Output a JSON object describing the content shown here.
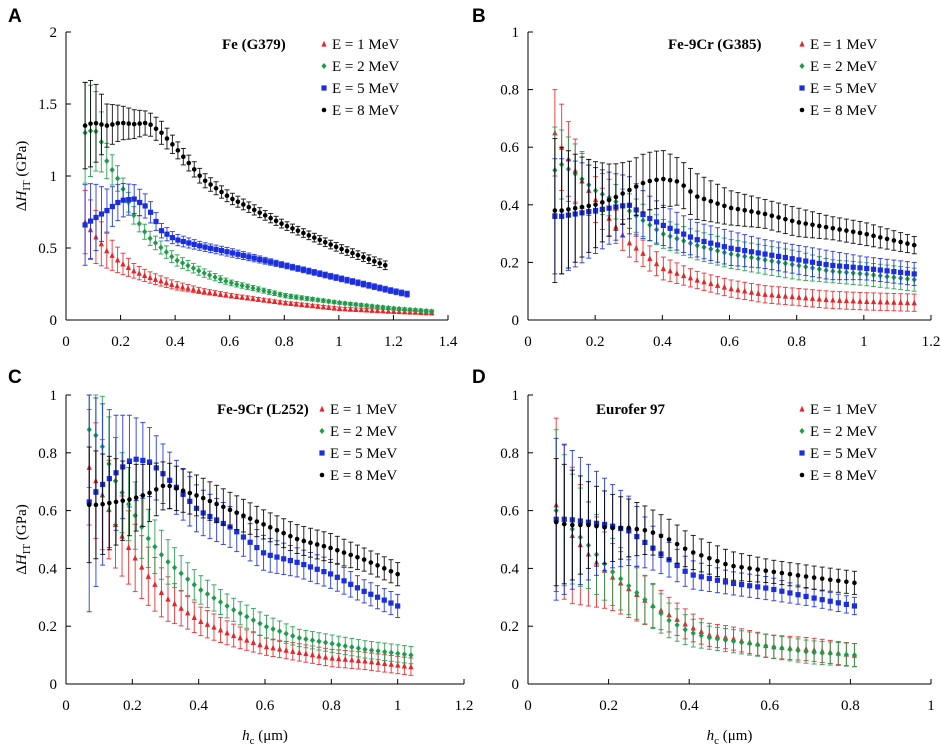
{
  "figure": {
    "xlabel_h": "h",
    "xlabel_sub": "c",
    "xlabel_unit": " (μm)",
    "ylabel_delta": "ΔH",
    "ylabel_sub": "IT",
    "ylabel_unit": " (GPa)"
  },
  "chart_data": [
    {
      "type": "scatter",
      "panel": "A",
      "title": "Fe (G379)",
      "xlim": [
        0,
        1.4
      ],
      "xticks": [
        0,
        0.2,
        0.4,
        0.6,
        0.8,
        1,
        1.2,
        1.4
      ],
      "ylim": [
        0,
        2
      ],
      "yticks": [
        0,
        0.5,
        1,
        1.5,
        2
      ],
      "xlabel": "",
      "ylabel": "ΔHIT (GPa)",
      "series": [
        {
          "name": "E = 1 MeV",
          "color": "#e8262a",
          "marker": "triangle",
          "x_end": 1.34,
          "x": [
            0.07,
            0.1,
            0.15,
            0.2,
            0.25,
            0.3,
            0.4,
            0.5,
            0.6,
            0.8,
            1.0,
            1.2,
            1.34
          ],
          "y": [
            0.68,
            0.6,
            0.48,
            0.4,
            0.34,
            0.3,
            0.24,
            0.2,
            0.17,
            0.12,
            0.08,
            0.06,
            0.05
          ],
          "err": [
            0.22,
            0.2,
            0.12,
            0.08,
            0.05,
            0.04,
            0.03,
            0.02,
            0.015,
            0.01,
            0.01,
            0.01,
            0.01
          ]
        },
        {
          "name": "E = 2 MeV",
          "color": "#1f9c4a",
          "marker": "diamond",
          "x_end": 1.34,
          "x": [
            0.07,
            0.1,
            0.12,
            0.15,
            0.2,
            0.25,
            0.3,
            0.4,
            0.5,
            0.6,
            0.8,
            1.0,
            1.2,
            1.34
          ],
          "y": [
            1.3,
            1.32,
            1.3,
            1.1,
            0.95,
            0.72,
            0.58,
            0.42,
            0.33,
            0.26,
            0.17,
            0.12,
            0.08,
            0.06
          ],
          "err": [
            0.35,
            0.3,
            0.25,
            0.12,
            0.08,
            0.06,
            0.05,
            0.04,
            0.03,
            0.02,
            0.015,
            0.01,
            0.01,
            0.01
          ]
        },
        {
          "name": "E = 5 MeV",
          "color": "#1a2ee0",
          "marker": "square",
          "x_end": 1.25,
          "x": [
            0.07,
            0.1,
            0.15,
            0.2,
            0.25,
            0.3,
            0.35,
            0.4,
            0.5,
            0.6,
            0.8,
            1.0,
            1.2,
            1.25
          ],
          "y": [
            0.66,
            0.7,
            0.76,
            0.83,
            0.84,
            0.78,
            0.62,
            0.56,
            0.51,
            0.47,
            0.38,
            0.29,
            0.2,
            0.18
          ],
          "err": [
            0.28,
            0.25,
            0.15,
            0.12,
            0.1,
            0.08,
            0.05,
            0.04,
            0.03,
            0.03,
            0.02,
            0.02,
            0.02,
            0.02
          ]
        },
        {
          "name": "E = 8 MeV",
          "color": "#000000",
          "marker": "circle",
          "x_end": 1.17,
          "x": [
            0.07,
            0.1,
            0.15,
            0.2,
            0.25,
            0.3,
            0.35,
            0.4,
            0.5,
            0.6,
            0.8,
            1.0,
            1.17
          ],
          "y": [
            1.35,
            1.37,
            1.35,
            1.37,
            1.36,
            1.37,
            1.3,
            1.2,
            0.98,
            0.85,
            0.66,
            0.5,
            0.38
          ],
          "err": [
            0.3,
            0.3,
            0.15,
            0.12,
            0.1,
            0.08,
            0.08,
            0.06,
            0.05,
            0.04,
            0.03,
            0.03,
            0.03
          ]
        }
      ]
    },
    {
      "type": "scatter",
      "panel": "B",
      "title": "Fe-9Cr (G385)",
      "xlim": [
        0,
        1.2
      ],
      "xticks": [
        0,
        0.2,
        0.4,
        0.6,
        0.8,
        1,
        1.2
      ],
      "ylim": [
        0,
        1
      ],
      "yticks": [
        0,
        0.2,
        0.4,
        0.6,
        0.8,
        1
      ],
      "xlabel": "",
      "ylabel": "",
      "series": [
        {
          "name": "E = 1 MeV",
          "color": "#e8262a",
          "marker": "triangle",
          "x_end": 1.15,
          "x": [
            0.08,
            0.1,
            0.15,
            0.2,
            0.25,
            0.3,
            0.4,
            0.5,
            0.6,
            0.7,
            0.8,
            0.9,
            1.0,
            1.15
          ],
          "y": [
            0.65,
            0.6,
            0.5,
            0.42,
            0.34,
            0.27,
            0.18,
            0.14,
            0.11,
            0.09,
            0.08,
            0.07,
            0.065,
            0.06
          ],
          "err": [
            0.15,
            0.15,
            0.1,
            0.08,
            0.06,
            0.05,
            0.04,
            0.03,
            0.03,
            0.03,
            0.03,
            0.03,
            0.03,
            0.03
          ]
        },
        {
          "name": "E = 2 MeV",
          "color": "#1f9c4a",
          "marker": "diamond",
          "x_end": 1.15,
          "x": [
            0.08,
            0.1,
            0.15,
            0.2,
            0.25,
            0.3,
            0.4,
            0.5,
            0.6,
            0.7,
            0.8,
            0.9,
            1.0,
            1.15
          ],
          "y": [
            0.52,
            0.54,
            0.5,
            0.45,
            0.42,
            0.38,
            0.3,
            0.26,
            0.23,
            0.21,
            0.19,
            0.17,
            0.16,
            0.14
          ],
          "err": [
            0.15,
            0.12,
            0.1,
            0.08,
            0.06,
            0.06,
            0.05,
            0.05,
            0.05,
            0.05,
            0.05,
            0.04,
            0.04,
            0.04
          ]
        },
        {
          "name": "E = 5 MeV",
          "color": "#1a2ee0",
          "marker": "square",
          "x_end": 1.15,
          "x": [
            0.08,
            0.1,
            0.15,
            0.2,
            0.25,
            0.3,
            0.35,
            0.4,
            0.5,
            0.6,
            0.7,
            0.8,
            0.9,
            1.0,
            1.15
          ],
          "y": [
            0.36,
            0.36,
            0.37,
            0.38,
            0.39,
            0.4,
            0.36,
            0.33,
            0.28,
            0.25,
            0.23,
            0.21,
            0.19,
            0.18,
            0.16
          ],
          "err": [
            0.2,
            0.2,
            0.18,
            0.15,
            0.12,
            0.1,
            0.08,
            0.07,
            0.06,
            0.06,
            0.05,
            0.05,
            0.05,
            0.04,
            0.04
          ]
        },
        {
          "name": "E = 8 MeV",
          "color": "#000000",
          "marker": "circle",
          "x_end": 1.15,
          "x": [
            0.08,
            0.1,
            0.15,
            0.2,
            0.25,
            0.3,
            0.35,
            0.4,
            0.45,
            0.5,
            0.6,
            0.7,
            0.8,
            0.9,
            1.0,
            1.15
          ],
          "y": [
            0.38,
            0.38,
            0.39,
            0.4,
            0.42,
            0.45,
            0.48,
            0.49,
            0.48,
            0.43,
            0.39,
            0.37,
            0.34,
            0.32,
            0.3,
            0.26
          ],
          "err": [
            0.25,
            0.22,
            0.18,
            0.15,
            0.12,
            0.1,
            0.1,
            0.1,
            0.08,
            0.08,
            0.06,
            0.05,
            0.05,
            0.04,
            0.04,
            0.03
          ]
        }
      ]
    },
    {
      "type": "scatter",
      "panel": "C",
      "title": "Fe-9Cr (L252)",
      "xlim": [
        0,
        1.2
      ],
      "xticks": [
        0,
        0.2,
        0.4,
        0.6,
        0.8,
        1,
        1.2
      ],
      "ylim": [
        0,
        1
      ],
      "yticks": [
        0,
        0.2,
        0.4,
        0.6,
        0.8,
        1
      ],
      "xlabel": "hc (μm)",
      "ylabel": "ΔHIT (GPa)",
      "series": [
        {
          "name": "E = 1 MeV",
          "color": "#e8262a",
          "marker": "triangle",
          "x_end": 1.04,
          "x": [
            0.07,
            0.1,
            0.15,
            0.2,
            0.25,
            0.3,
            0.35,
            0.4,
            0.5,
            0.6,
            0.7,
            0.8,
            0.9,
            1.04
          ],
          "y": [
            0.75,
            0.68,
            0.55,
            0.45,
            0.37,
            0.3,
            0.26,
            0.22,
            0.17,
            0.13,
            0.11,
            0.09,
            0.08,
            0.06
          ],
          "err": [
            0.2,
            0.2,
            0.15,
            0.12,
            0.1,
            0.08,
            0.06,
            0.05,
            0.04,
            0.03,
            0.03,
            0.03,
            0.03,
            0.03
          ]
        },
        {
          "name": "E = 2 MeV",
          "color": "#1f9c4a",
          "marker": "diamond",
          "x_end": 1.04,
          "x": [
            0.07,
            0.1,
            0.15,
            0.2,
            0.25,
            0.3,
            0.35,
            0.4,
            0.5,
            0.6,
            0.7,
            0.8,
            0.9,
            1.04
          ],
          "y": [
            0.88,
            0.85,
            0.7,
            0.6,
            0.5,
            0.43,
            0.38,
            0.33,
            0.26,
            0.2,
            0.16,
            0.14,
            0.12,
            0.1
          ],
          "err": [
            0.2,
            0.18,
            0.15,
            0.12,
            0.1,
            0.08,
            0.06,
            0.05,
            0.04,
            0.04,
            0.03,
            0.03,
            0.03,
            0.03
          ]
        },
        {
          "name": "E = 5 MeV",
          "color": "#1a2ee0",
          "marker": "square",
          "x_end": 1.0,
          "x": [
            0.07,
            0.1,
            0.15,
            0.2,
            0.25,
            0.3,
            0.4,
            0.5,
            0.6,
            0.7,
            0.8,
            0.9,
            1.0
          ],
          "y": [
            0.63,
            0.68,
            0.73,
            0.78,
            0.77,
            0.72,
            0.6,
            0.54,
            0.45,
            0.42,
            0.38,
            0.32,
            0.27
          ],
          "err": [
            0.38,
            0.3,
            0.2,
            0.15,
            0.12,
            0.1,
            0.08,
            0.07,
            0.06,
            0.05,
            0.05,
            0.04,
            0.04
          ]
        },
        {
          "name": "E = 8 MeV",
          "color": "#000000",
          "marker": "circle",
          "x_end": 1.0,
          "x": [
            0.07,
            0.1,
            0.15,
            0.2,
            0.25,
            0.3,
            0.4,
            0.5,
            0.6,
            0.7,
            0.8,
            0.9,
            1.0
          ],
          "y": [
            0.62,
            0.62,
            0.63,
            0.64,
            0.66,
            0.69,
            0.65,
            0.6,
            0.55,
            0.5,
            0.47,
            0.43,
            0.38
          ],
          "err": [
            0.2,
            0.18,
            0.15,
            0.12,
            0.1,
            0.08,
            0.07,
            0.06,
            0.05,
            0.05,
            0.05,
            0.04,
            0.04
          ]
        }
      ]
    },
    {
      "type": "scatter",
      "panel": "D",
      "title": "Eurofer 97",
      "xlim": [
        0,
        1
      ],
      "xticks": [
        0,
        0.2,
        0.4,
        0.6,
        0.8,
        1
      ],
      "ylim": [
        0,
        1
      ],
      "yticks": [
        0,
        0.2,
        0.4,
        0.6,
        0.8,
        1
      ],
      "xlabel": "hc (μm)",
      "ylabel": "",
      "series": [
        {
          "name": "E = 1 MeV",
          "color": "#e8262a",
          "marker": "triangle",
          "x_end": 0.81,
          "x": [
            0.07,
            0.1,
            0.15,
            0.2,
            0.25,
            0.3,
            0.35,
            0.4,
            0.45,
            0.5,
            0.6,
            0.7,
            0.81
          ],
          "y": [
            0.62,
            0.53,
            0.45,
            0.38,
            0.33,
            0.28,
            0.24,
            0.2,
            0.17,
            0.16,
            0.13,
            0.12,
            0.1
          ],
          "err": [
            0.3,
            0.25,
            0.18,
            0.12,
            0.1,
            0.08,
            0.06,
            0.05,
            0.04,
            0.04,
            0.04,
            0.04,
            0.04
          ]
        },
        {
          "name": "E = 2 MeV",
          "color": "#1f9c4a",
          "marker": "diamond",
          "x_end": 0.81,
          "x": [
            0.07,
            0.1,
            0.15,
            0.2,
            0.25,
            0.3,
            0.35,
            0.4,
            0.45,
            0.5,
            0.6,
            0.7,
            0.81
          ],
          "y": [
            0.6,
            0.55,
            0.48,
            0.4,
            0.34,
            0.28,
            0.22,
            0.18,
            0.16,
            0.15,
            0.13,
            0.11,
            0.1
          ],
          "err": [
            0.28,
            0.2,
            0.15,
            0.12,
            0.1,
            0.08,
            0.06,
            0.05,
            0.04,
            0.04,
            0.04,
            0.04,
            0.04
          ]
        },
        {
          "name": "E = 5 MeV",
          "color": "#1a2ee0",
          "marker": "square",
          "x_end": 0.81,
          "x": [
            0.07,
            0.1,
            0.15,
            0.2,
            0.25,
            0.3,
            0.35,
            0.4,
            0.5,
            0.6,
            0.7,
            0.81
          ],
          "y": [
            0.57,
            0.57,
            0.56,
            0.55,
            0.53,
            0.48,
            0.43,
            0.38,
            0.35,
            0.33,
            0.3,
            0.27
          ],
          "err": [
            0.28,
            0.25,
            0.2,
            0.15,
            0.12,
            0.08,
            0.06,
            0.05,
            0.04,
            0.04,
            0.03,
            0.03
          ]
        },
        {
          "name": "E = 8 MeV",
          "color": "#000000",
          "marker": "circle",
          "x_end": 0.81,
          "x": [
            0.07,
            0.1,
            0.15,
            0.2,
            0.25,
            0.3,
            0.35,
            0.4,
            0.5,
            0.6,
            0.7,
            0.81
          ],
          "y": [
            0.56,
            0.55,
            0.55,
            0.54,
            0.54,
            0.53,
            0.5,
            0.46,
            0.41,
            0.39,
            0.37,
            0.35
          ],
          "err": [
            0.22,
            0.2,
            0.15,
            0.12,
            0.1,
            0.08,
            0.07,
            0.06,
            0.05,
            0.04,
            0.04,
            0.04
          ]
        }
      ]
    }
  ]
}
